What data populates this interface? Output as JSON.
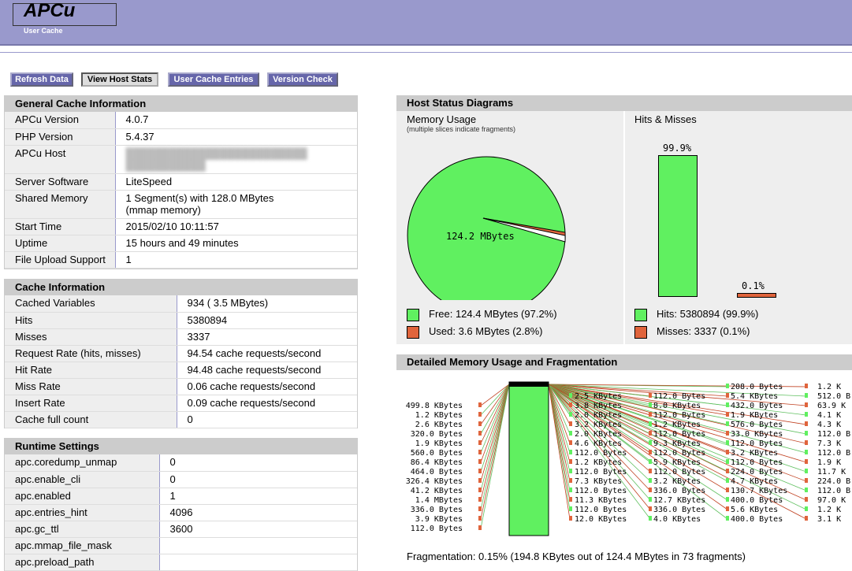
{
  "header": {
    "logo": "APCu",
    "subtitle": "User Cache"
  },
  "nav": [
    {
      "label": "Refresh Data",
      "active": false
    },
    {
      "label": "View Host Stats",
      "active": true
    },
    {
      "label": "User Cache Entries",
      "active": false
    },
    {
      "label": "Version Check",
      "active": false
    }
  ],
  "general": {
    "title": "General Cache Information",
    "rows": [
      {
        "k": "APCu Version",
        "v": "4.0.7"
      },
      {
        "k": "PHP Version",
        "v": "5.4.37"
      },
      {
        "k": "APCu Host",
        "v": ""
      },
      {
        "k": "Server Software",
        "v": "LiteSpeed"
      },
      {
        "k": "Shared Memory",
        "v": "1 Segment(s) with 128.0 MBytes",
        "v2": "(mmap memory)"
      },
      {
        "k": "Start Time",
        "v": "2015/02/10 10:11:57"
      },
      {
        "k": "Uptime",
        "v": "15 hours and 49 minutes"
      },
      {
        "k": "File Upload Support",
        "v": "1"
      }
    ]
  },
  "cache": {
    "title": "Cache Information",
    "rows": [
      {
        "k": "Cached Variables",
        "v": "934 ( 3.5 MBytes)"
      },
      {
        "k": "Hits",
        "v": "5380894"
      },
      {
        "k": "Misses",
        "v": "3337"
      },
      {
        "k": "Request Rate (hits, misses)",
        "v": "94.54 cache requests/second"
      },
      {
        "k": "Hit Rate",
        "v": "94.48 cache requests/second"
      },
      {
        "k": "Miss Rate",
        "v": "0.06 cache requests/second"
      },
      {
        "k": "Insert Rate",
        "v": "0.09 cache requests/second"
      },
      {
        "k": "Cache full count",
        "v": "0"
      }
    ]
  },
  "runtime": {
    "title": "Runtime Settings",
    "rows": [
      {
        "k": "apc.coredump_unmap",
        "v": "0"
      },
      {
        "k": "apc.enable_cli",
        "v": "0"
      },
      {
        "k": "apc.enabled",
        "v": "1"
      },
      {
        "k": "apc.entries_hint",
        "v": "4096"
      },
      {
        "k": "apc.gc_ttl",
        "v": "3600"
      },
      {
        "k": "apc.mmap_file_mask",
        "v": ""
      },
      {
        "k": "apc.preload_path",
        "v": ""
      }
    ]
  },
  "host": {
    "title": "Host Status Diagrams",
    "memory_title": "Memory Usage",
    "memory_sub": "(multiple slices indicate fragments)",
    "pie_label": "124.2 MBytes",
    "free_label": "Free: 124.4 MBytes (97.2%)",
    "used_label": "Used: 3.6 MBytes (2.8%)",
    "hits_title": "Hits & Misses",
    "hits_pct": "99.9%",
    "miss_pct": "0.1%",
    "hits_label": "Hits: 5380894 (99.9%)",
    "misses_label": "Misses: 3337 (0.1%)",
    "colors": {
      "free": "#60f060",
      "used": "#e0643c"
    }
  },
  "detail": {
    "title": "Detailed Memory Usage and Fragmentation",
    "left_labels": [
      "499.8 KBytes",
      "1.2 KBytes",
      "2.6 KBytes",
      "320.0 Bytes",
      "1.9 KBytes",
      "560.0 Bytes",
      "86.4 KBytes",
      "464.0 Bytes",
      "326.4 KBytes",
      "41.2 KBytes",
      "1.4 MBytes",
      "336.0 Bytes",
      "3.9 KBytes",
      "112.0 Bytes"
    ],
    "col2_labels": [
      "2.5 KBytes",
      "3.8 KBytes",
      "2.0 KBytes",
      "3.2 KBytes",
      "2.0 KBytes",
      "4.6 KBytes",
      "112.0 Bytes",
      "1.2 KBytes",
      "112.0 Bytes",
      "7.3 KBytes",
      "112.0 Bytes",
      "11.3 KBytes",
      "112.0 Bytes",
      "12.0 KBytes"
    ],
    "col3_labels": [
      "112.0 Bytes",
      "8.0 KBytes",
      "112.0 Bytes",
      "1.2 KBytes",
      "112.0 Bytes",
      "9.3 KBytes",
      "112.0 Bytes",
      "5.9 KBytes",
      "112.0 Bytes",
      "3.2 KBytes",
      "336.0 Bytes",
      "12.7 KBytes",
      "336.0 Bytes",
      "4.0 KBytes"
    ],
    "col4_labels": [
      "208.0 Bytes",
      "5.4 KBytes",
      "432.0 Bytes",
      "1.9 KBytes",
      "576.0 Bytes",
      "33.0 KBytes",
      "112.0 Bytes",
      "3.2 KBytes",
      "112.0 Bytes",
      "224.0 Bytes",
      "4.7 KBytes",
      "130.7 KBytes",
      "400.0 Bytes",
      "5.6 KBytes",
      "400.0 Bytes"
    ],
    "col5_labels": [
      "1.2 K",
      "512.0 B",
      "63.9 K",
      "4.1 K",
      "4.3 K",
      "112.0 B",
      "7.3 K",
      "112.0 B",
      "1.9 K",
      "11.7 K",
      "224.0 B",
      "112.0 B",
      "97.0 K",
      "1.2 K",
      "3.1 K"
    ],
    "fragmentation": "Fragmentation: 0.15% (194.8 KBytes out of 124.4 MBytes in 73 fragments)"
  }
}
